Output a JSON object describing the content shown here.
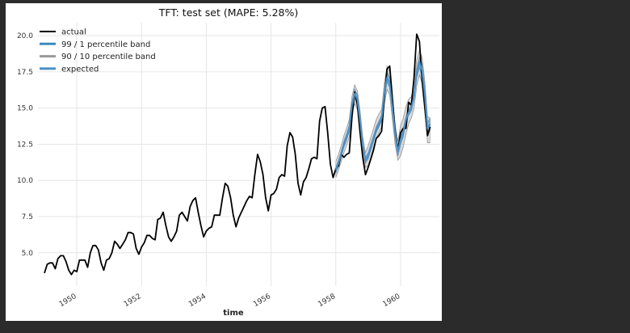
{
  "chart_data": {
    "type": "line",
    "title": "TFT: test set (MAPE: 5.28%)",
    "xlabel": "time",
    "ylabel": "",
    "xlim": [
      1948.8,
      1961.2
    ],
    "ylim": [
      2.7,
      20.9
    ],
    "grid": true,
    "legend_position": "top-left",
    "x_ticks": [
      1950,
      1952,
      1954,
      1956,
      1958,
      1960
    ],
    "x_tick_labels": [
      "1950",
      "1952",
      "1954",
      "1956",
      "1958",
      "1960"
    ],
    "y_ticks": [
      5.0,
      7.5,
      10.0,
      12.5,
      15.0,
      17.5,
      20.0
    ],
    "y_tick_labels": [
      "5.0",
      "7.5",
      "10.0",
      "12.5",
      "15.0",
      "17.5",
      "20.0"
    ],
    "series": [
      {
        "name": "actual",
        "color": "#000000",
        "x_start": 1949.0,
        "x_step": 0.083333,
        "values": [
          3.6,
          4.2,
          4.3,
          4.3,
          3.9,
          4.6,
          4.8,
          4.8,
          4.4,
          3.8,
          3.5,
          3.8,
          3.7,
          4.5,
          4.5,
          4.5,
          4.0,
          5.0,
          5.5,
          5.5,
          5.2,
          4.3,
          3.8,
          4.5,
          4.6,
          5.0,
          5.8,
          5.6,
          5.3,
          5.6,
          5.9,
          6.4,
          6.4,
          6.3,
          5.3,
          4.9,
          5.4,
          5.7,
          6.2,
          6.2,
          6.0,
          5.9,
          7.3,
          7.4,
          7.8,
          6.9,
          6.1,
          5.8,
          6.1,
          6.5,
          7.6,
          7.8,
          7.5,
          7.2,
          8.2,
          8.6,
          8.8,
          7.8,
          6.9,
          6.1,
          6.5,
          6.7,
          6.8,
          7.6,
          7.6,
          7.6,
          8.8,
          9.8,
          9.6,
          8.8,
          7.6,
          6.8,
          7.4,
          7.8,
          8.2,
          8.6,
          8.9,
          8.8,
          10.4,
          11.8,
          11.3,
          10.4,
          8.8,
          7.9,
          9.0,
          9.1,
          9.4,
          10.2,
          10.4,
          10.3,
          12.4,
          13.3,
          13.0,
          11.8,
          9.8,
          9.0,
          9.9,
          10.2,
          10.8,
          11.5,
          11.6,
          11.5,
          14.1,
          15.0,
          15.1,
          13.3,
          11.1,
          10.2,
          10.8,
          11.0,
          11.8,
          11.6,
          11.8,
          11.9,
          14.4,
          16.1,
          15.2,
          13.3,
          11.6,
          10.4,
          10.9,
          11.5,
          12.1,
          12.9,
          13.1,
          13.4,
          15.7,
          17.7,
          17.9,
          15.6,
          13.4,
          12.1,
          13.3,
          13.6,
          13.6,
          15.4,
          15.2,
          17.1,
          20.1,
          19.6,
          16.9,
          15.0,
          13.1,
          13.7
        ]
      },
      {
        "name": "99 / 1 percentile band",
        "color": "#3b8bbf",
        "x_start": 1958.0,
        "x_step": 0.083333,
        "values": [
          10.7,
          11.2,
          11.8,
          12.5,
          13.0,
          13.6,
          15.2,
          16.0,
          15.6,
          14.1,
          12.4,
          11.4,
          11.7,
          12.3,
          12.9,
          13.5,
          13.9,
          14.3,
          16.0,
          17.1,
          16.7,
          15.0,
          13.2,
          12.0,
          12.8,
          13.3,
          14.2,
          14.7,
          15.0,
          15.8,
          17.4,
          18.2,
          17.6,
          15.9,
          13.6,
          13.9
        ],
        "lower": [
          10.5,
          11.0,
          11.6,
          12.3,
          12.8,
          13.4,
          15.0,
          15.7,
          15.3,
          13.7,
          12.2,
          11.2,
          11.5,
          12.1,
          12.7,
          13.3,
          13.7,
          14.1,
          15.7,
          16.8,
          16.4,
          14.7,
          12.9,
          11.7,
          12.5,
          13.0,
          14.0,
          14.5,
          14.8,
          15.6,
          17.1,
          17.8,
          17.2,
          15.5,
          13.2,
          13.5
        ],
        "upper": [
          10.9,
          11.4,
          12.0,
          12.7,
          13.2,
          13.8,
          15.4,
          16.3,
          15.9,
          14.5,
          12.6,
          11.6,
          11.9,
          12.5,
          13.1,
          13.7,
          14.1,
          14.5,
          16.3,
          17.5,
          17.1,
          15.3,
          13.5,
          12.3,
          13.1,
          13.6,
          14.4,
          14.9,
          15.2,
          16.0,
          17.7,
          18.5,
          18.0,
          16.3,
          14.0,
          14.3
        ]
      },
      {
        "name": "90 / 10 percentile band",
        "color": "#999999",
        "x_start": 1958.0,
        "x_step": 0.083333,
        "values": [
          10.7,
          11.2,
          11.8,
          12.5,
          13.0,
          13.6,
          15.2,
          16.0,
          15.6,
          14.1,
          12.4,
          11.4,
          11.7,
          12.3,
          12.9,
          13.5,
          13.9,
          14.3,
          16.0,
          17.1,
          16.7,
          15.0,
          13.2,
          12.0,
          12.8,
          13.3,
          14.2,
          14.7,
          15.0,
          15.8,
          17.4,
          18.2,
          17.6,
          15.9,
          13.6,
          13.9
        ],
        "lower": [
          10.2,
          10.7,
          11.3,
          11.9,
          12.4,
          13.0,
          14.6,
          15.3,
          14.9,
          13.4,
          11.9,
          10.9,
          11.0,
          11.6,
          12.3,
          12.9,
          13.3,
          13.7,
          15.3,
          16.3,
          15.9,
          14.2,
          12.5,
          11.4,
          11.7,
          12.3,
          13.2,
          13.9,
          14.3,
          15.0,
          16.5,
          17.3,
          16.7,
          15.0,
          12.6,
          12.6
        ],
        "upper": [
          11.3,
          11.8,
          12.4,
          13.1,
          13.6,
          14.2,
          15.8,
          16.6,
          16.2,
          14.8,
          13.0,
          11.9,
          12.4,
          13.0,
          13.6,
          14.2,
          14.6,
          14.9,
          16.7,
          17.9,
          17.5,
          15.8,
          13.9,
          12.7,
          13.8,
          14.3,
          15.1,
          15.6,
          15.8,
          16.6,
          18.3,
          19.0,
          18.5,
          16.8,
          14.4,
          14.3
        ]
      },
      {
        "name": "expected",
        "color": "#4a90c8",
        "x_start": 1958.0,
        "x_step": 0.083333,
        "values": [
          10.7,
          11.2,
          11.8,
          12.5,
          13.0,
          13.6,
          15.2,
          16.0,
          15.6,
          14.1,
          12.4,
          11.4,
          11.7,
          12.3,
          12.9,
          13.5,
          13.9,
          14.3,
          16.0,
          17.1,
          16.7,
          15.0,
          13.2,
          12.0,
          12.8,
          13.3,
          14.2,
          14.7,
          15.0,
          15.8,
          17.4,
          18.2,
          17.6,
          15.9,
          13.6,
          13.9
        ]
      }
    ]
  }
}
